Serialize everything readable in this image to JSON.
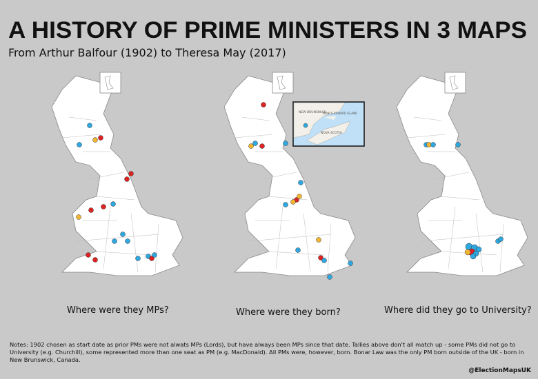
{
  "title": "A HISTORY OF PRIME MINISTERS IN 3 MAPS",
  "subtitle": "From Arthur Balfour (1902) to Theresa May (2017)",
  "maps": [
    {
      "caption": "Where were they MPs?"
    },
    {
      "caption": "Where were they born?"
    },
    {
      "caption": "Where did they go to University?"
    }
  ],
  "inset": {
    "labels": [
      "NEW BRUNSWICK",
      "PRINCE EDWARD ISLAND",
      "NOVA SCOTIA"
    ]
  },
  "notes": "Notes: 1902 chosen as start date as prior PMs were not alwats MPs (Lords), but have always been MPs since that date. Tallies above don't all match up - some PMs did not go to University (e.g. Churchill), some represented more than one seat as PM (e.g. MacDonald). All PMs were, however, born. Bonar Law was the only PM born outside of the UK - born in New Brunswick, Canada.",
  "credit": "@ElectionMapsUK"
}
